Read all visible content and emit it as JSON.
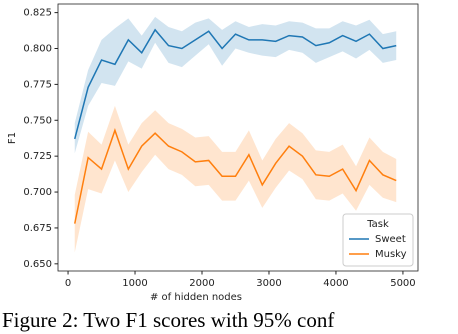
{
  "chart_data": {
    "type": "line",
    "xlabel": "# of hidden nodes",
    "ylabel": "F1",
    "caption": "Figure 2:  Two F1 scores with 95% conf",
    "legend_title": "Task",
    "legend": "lower right",
    "x": [
      100,
      300,
      500,
      700,
      900,
      1100,
      1300,
      1500,
      1700,
      1900,
      2100,
      2300,
      2500,
      2700,
      2900,
      3100,
      3300,
      3500,
      3700,
      3900,
      4100,
      4300,
      4500,
      4700,
      4900
    ],
    "series": [
      {
        "name": "Sweet",
        "color": "#1f77b4",
        "values": [
          0.737,
          0.773,
          0.792,
          0.789,
          0.806,
          0.797,
          0.813,
          0.802,
          0.8,
          0.806,
          0.812,
          0.8,
          0.81,
          0.806,
          0.806,
          0.805,
          0.809,
          0.808,
          0.802,
          0.804,
          0.809,
          0.805,
          0.81,
          0.8,
          0.802
        ],
        "lower": [
          0.727,
          0.76,
          0.776,
          0.774,
          0.791,
          0.786,
          0.804,
          0.79,
          0.787,
          0.795,
          0.803,
          0.788,
          0.8,
          0.797,
          0.795,
          0.794,
          0.799,
          0.797,
          0.79,
          0.794,
          0.798,
          0.793,
          0.799,
          0.79,
          0.792
        ],
        "upper": [
          0.748,
          0.785,
          0.806,
          0.814,
          0.821,
          0.809,
          0.822,
          0.815,
          0.812,
          0.818,
          0.821,
          0.813,
          0.819,
          0.815,
          0.817,
          0.816,
          0.819,
          0.818,
          0.814,
          0.814,
          0.819,
          0.816,
          0.82,
          0.81,
          0.812
        ]
      },
      {
        "name": "Musky",
        "color": "#ff7f0e",
        "values": [
          0.678,
          0.724,
          0.716,
          0.743,
          0.716,
          0.732,
          0.741,
          0.732,
          0.728,
          0.721,
          0.722,
          0.711,
          0.711,
          0.726,
          0.705,
          0.72,
          0.732,
          0.725,
          0.712,
          0.711,
          0.716,
          0.701,
          0.722,
          0.712,
          0.708
        ],
        "lower": [
          0.658,
          0.702,
          0.699,
          0.722,
          0.7,
          0.714,
          0.726,
          0.716,
          0.712,
          0.704,
          0.705,
          0.694,
          0.694,
          0.708,
          0.689,
          0.703,
          0.715,
          0.709,
          0.695,
          0.694,
          0.699,
          0.687,
          0.705,
          0.696,
          0.693
        ],
        "upper": [
          0.698,
          0.742,
          0.733,
          0.76,
          0.733,
          0.748,
          0.757,
          0.748,
          0.744,
          0.738,
          0.739,
          0.728,
          0.728,
          0.743,
          0.722,
          0.737,
          0.748,
          0.741,
          0.729,
          0.728,
          0.733,
          0.718,
          0.738,
          0.728,
          0.723
        ]
      }
    ],
    "xlim": [
      -150,
      5225
    ],
    "xticks": [
      0,
      1000,
      2000,
      3000,
      4000,
      5000
    ],
    "ylim": [
      0.645,
      0.831
    ],
    "yticks": [
      {
        "value": 0.65,
        "label": "0.650"
      },
      {
        "value": 0.675,
        "label": "0.675"
      },
      {
        "value": 0.7,
        "label": "0.700"
      },
      {
        "value": 0.725,
        "label": "0.725"
      },
      {
        "value": 0.75,
        "label": "0.750"
      },
      {
        "value": 0.775,
        "label": "0.775"
      },
      {
        "value": 0.8,
        "label": "0.800"
      },
      {
        "value": 0.825,
        "label": "0.825"
      }
    ]
  }
}
